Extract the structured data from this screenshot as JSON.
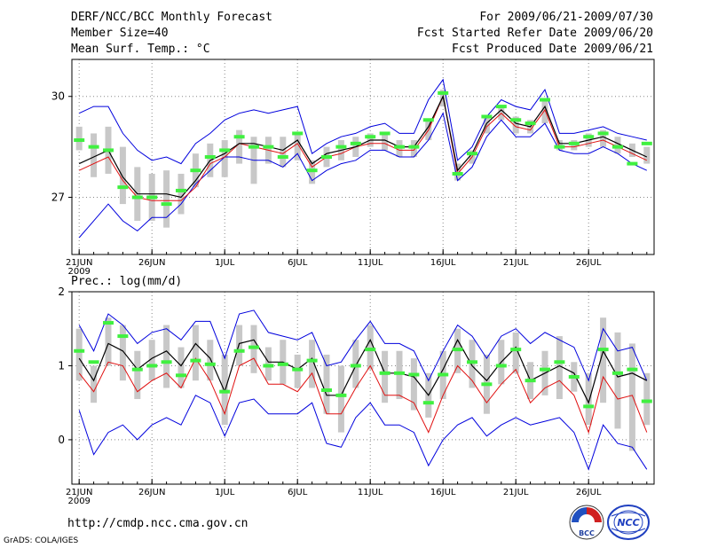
{
  "header": {
    "title": "DERF/NCC/BCC Monthly Forecast",
    "member": "Member Size=40",
    "variable": "Mean Surf. Temp.: °C",
    "period": "For 2009/06/21-2009/07/30",
    "refer": "Fcst Started Refer Date 2009/06/20",
    "produced": "Fcst Produced Date 2009/06/21"
  },
  "footer": {
    "url": "http://cmdp.ncc.cma.gov.cn",
    "grads": "GrADS: COLA/IGES",
    "logo_bcc": "BCC",
    "logo_ncc": "NCC"
  },
  "colors": {
    "mean": "#000000",
    "median": "#e01010",
    "range": "#0000dd",
    "box": "#c8c8c8",
    "obs": "#40f040"
  },
  "chart_data": [
    {
      "type": "line",
      "title": "Mean Surf. Temp.: °C",
      "x_label_year": "2009",
      "tick_labels": [
        {
          "day": 0,
          "label": "21JUN"
        },
        {
          "day": 5,
          "label": "26JUN"
        },
        {
          "day": 10,
          "label": "1JUL"
        },
        {
          "day": 15,
          "label": "6JUL"
        },
        {
          "day": 20,
          "label": "11JUL"
        },
        {
          "day": 25,
          "label": "16JUL"
        },
        {
          "day": 30,
          "label": "21JUL"
        },
        {
          "day": 35,
          "label": "26JUL"
        }
      ],
      "y_ticks": [
        27,
        30
      ],
      "ylim": [
        25.3,
        31.1
      ],
      "xlim": [
        -0.5,
        39.5
      ],
      "mean": [
        28.0,
        28.2,
        28.4,
        27.6,
        27.1,
        27.1,
        27.1,
        27.0,
        27.5,
        28.1,
        28.3,
        28.6,
        28.6,
        28.5,
        28.4,
        28.7,
        28.0,
        28.3,
        28.4,
        28.5,
        28.7,
        28.7,
        28.5,
        28.5,
        29.1,
        30.0,
        27.8,
        28.3,
        29.2,
        29.6,
        29.2,
        29.1,
        29.7,
        28.6,
        28.6,
        28.7,
        28.8,
        28.6,
        28.4,
        28.2
      ],
      "median": [
        27.8,
        28.0,
        28.2,
        27.5,
        27.0,
        26.9,
        26.9,
        26.9,
        27.3,
        28.0,
        28.2,
        28.6,
        28.5,
        28.4,
        28.3,
        28.6,
        27.9,
        28.2,
        28.3,
        28.5,
        28.6,
        28.6,
        28.4,
        28.4,
        29.0,
        30.0,
        27.7,
        28.2,
        29.1,
        29.5,
        29.1,
        29.0,
        29.6,
        28.5,
        28.5,
        28.6,
        28.7,
        28.5,
        28.3,
        28.1
      ],
      "max": [
        29.5,
        29.7,
        29.7,
        28.9,
        28.4,
        28.1,
        28.2,
        28.0,
        28.6,
        28.9,
        29.3,
        29.5,
        29.6,
        29.5,
        29.6,
        29.7,
        28.3,
        28.6,
        28.8,
        28.9,
        29.1,
        29.2,
        28.9,
        28.9,
        29.9,
        30.5,
        28.1,
        28.5,
        29.4,
        29.9,
        29.7,
        29.6,
        30.2,
        28.9,
        28.9,
        29.0,
        29.1,
        28.9,
        28.8,
        28.7
      ],
      "min": [
        25.8,
        26.3,
        26.8,
        26.3,
        26.0,
        26.4,
        26.4,
        26.8,
        27.4,
        27.8,
        28.2,
        28.2,
        28.1,
        28.1,
        27.9,
        28.3,
        27.5,
        27.8,
        28.0,
        28.1,
        28.4,
        28.4,
        28.2,
        28.2,
        28.7,
        29.5,
        27.5,
        27.9,
        28.8,
        29.3,
        28.8,
        28.8,
        29.2,
        28.4,
        28.3,
        28.3,
        28.5,
        28.3,
        28.0,
        27.8
      ],
      "box_high": [
        29.1,
        28.9,
        29.1,
        28.5,
        27.9,
        27.7,
        27.8,
        27.7,
        28.3,
        28.6,
        28.7,
        29.0,
        28.8,
        28.8,
        28.8,
        28.9,
        28.1,
        28.5,
        28.7,
        28.8,
        28.9,
        28.9,
        28.7,
        28.7,
        29.3,
        30.2,
        28.0,
        28.4,
        29.4,
        29.7,
        29.4,
        29.3,
        29.9,
        28.7,
        28.7,
        28.9,
        29.0,
        28.8,
        28.6,
        28.5
      ],
      "box_low": [
        28.4,
        27.6,
        27.7,
        26.8,
        26.3,
        26.3,
        26.1,
        26.5,
        27.3,
        27.6,
        27.6,
        28.0,
        27.4,
        28.0,
        27.9,
        28.1,
        27.4,
        27.9,
        28.1,
        28.2,
        28.5,
        28.4,
        28.2,
        28.2,
        28.7,
        29.7,
        27.5,
        28.0,
        28.9,
        29.3,
        28.9,
        28.9,
        29.2,
        28.4,
        28.4,
        28.5,
        28.5,
        28.3,
        28.2,
        28.0
      ],
      "obs": [
        28.7,
        28.5,
        28.4,
        27.3,
        27.0,
        27.0,
        26.8,
        27.2,
        27.8,
        28.2,
        28.4,
        28.8,
        28.5,
        28.5,
        28.2,
        28.9,
        27.8,
        28.2,
        28.5,
        28.6,
        28.8,
        28.9,
        28.5,
        28.5,
        29.3,
        30.1,
        27.7,
        28.3,
        29.4,
        29.7,
        29.3,
        29.2,
        29.9,
        28.5,
        28.6,
        28.8,
        28.9,
        28.5,
        28.0,
        28.6
      ]
    },
    {
      "type": "line",
      "title": "Prec.: log(mm/d)",
      "x_label_year": "2009",
      "tick_labels": [
        {
          "day": 0,
          "label": "21JUN"
        },
        {
          "day": 5,
          "label": "26JUN"
        },
        {
          "day": 10,
          "label": "1JUL"
        },
        {
          "day": 15,
          "label": "6JUL"
        },
        {
          "day": 20,
          "label": "11JUL"
        },
        {
          "day": 25,
          "label": "16JUL"
        },
        {
          "day": 30,
          "label": "21JUL"
        },
        {
          "day": 35,
          "label": "26JUL"
        }
      ],
      "y_ticks": [
        0,
        1,
        2
      ],
      "ylim": [
        -0.6,
        2.0
      ],
      "xlim": [
        -0.5,
        39.5
      ],
      "mean": [
        1.1,
        0.8,
        1.3,
        1.2,
        0.95,
        1.1,
        1.2,
        1.0,
        1.3,
        1.1,
        0.65,
        1.3,
        1.35,
        1.05,
        1.05,
        0.95,
        1.1,
        0.6,
        0.6,
        1.0,
        1.35,
        0.9,
        0.9,
        0.85,
        0.6,
        0.95,
        1.35,
        1.0,
        0.8,
        1.05,
        1.25,
        0.8,
        0.9,
        1.0,
        0.9,
        0.5,
        1.2,
        0.85,
        0.9,
        0.8
      ],
      "median": [
        0.9,
        0.65,
        1.05,
        1.0,
        0.65,
        0.8,
        0.9,
        0.7,
        1.1,
        0.8,
        0.35,
        1.0,
        1.1,
        0.75,
        0.75,
        0.65,
        0.9,
        0.35,
        0.35,
        0.7,
        1.0,
        0.6,
        0.6,
        0.5,
        0.1,
        0.6,
        1.0,
        0.8,
        0.5,
        0.75,
        0.95,
        0.5,
        0.7,
        0.8,
        0.6,
        0.1,
        0.85,
        0.55,
        0.6,
        0.1
      ],
      "max": [
        1.55,
        1.2,
        1.7,
        1.55,
        1.3,
        1.45,
        1.5,
        1.35,
        1.6,
        1.6,
        1.1,
        1.7,
        1.75,
        1.45,
        1.4,
        1.35,
        1.45,
        1.0,
        1.05,
        1.35,
        1.6,
        1.3,
        1.3,
        1.2,
        0.8,
        1.2,
        1.55,
        1.4,
        1.1,
        1.4,
        1.5,
        1.3,
        1.45,
        1.35,
        1.25,
        0.8,
        1.5,
        1.2,
        1.25,
        0.8
      ],
      "min": [
        0.4,
        -0.2,
        0.1,
        0.2,
        0.0,
        0.2,
        0.3,
        0.2,
        0.6,
        0.5,
        0.05,
        0.5,
        0.55,
        0.35,
        0.35,
        0.35,
        0.5,
        -0.05,
        -0.1,
        0.3,
        0.5,
        0.2,
        0.2,
        0.1,
        -0.35,
        0.0,
        0.2,
        0.3,
        0.05,
        0.2,
        0.3,
        0.2,
        0.25,
        0.3,
        0.1,
        -0.4,
        0.2,
        -0.05,
        -0.1,
        -0.4
      ],
      "box_high": [
        1.5,
        1.0,
        1.65,
        1.55,
        1.2,
        1.35,
        1.55,
        1.25,
        1.55,
        1.35,
        1.15,
        1.55,
        1.55,
        1.25,
        1.35,
        1.15,
        1.35,
        1.15,
        1.0,
        1.35,
        1.55,
        1.2,
        1.2,
        1.1,
        0.9,
        1.2,
        1.5,
        1.35,
        1.15,
        1.35,
        1.45,
        1.05,
        1.2,
        1.4,
        1.05,
        0.9,
        1.65,
        1.45,
        1.3,
        0.9
      ],
      "box_low": [
        0.8,
        0.5,
        1.0,
        0.8,
        0.55,
        0.8,
        0.7,
        0.7,
        0.8,
        0.8,
        0.2,
        1.0,
        0.9,
        0.8,
        0.75,
        0.7,
        0.7,
        0.35,
        0.1,
        0.7,
        0.95,
        0.5,
        0.55,
        0.4,
        0.3,
        0.55,
        0.9,
        0.7,
        0.35,
        0.75,
        0.9,
        0.55,
        0.6,
        0.55,
        0.65,
        0.2,
        0.5,
        0.15,
        -0.15,
        0.2
      ],
      "obs": [
        1.2,
        1.05,
        1.58,
        1.4,
        0.95,
        1.0,
        1.05,
        0.87,
        1.07,
        1.02,
        0.65,
        1.2,
        1.25,
        1.0,
        1.02,
        0.95,
        1.07,
        0.67,
        0.6,
        1.0,
        1.22,
        0.9,
        0.9,
        0.88,
        0.5,
        0.88,
        1.22,
        1.05,
        0.75,
        1.0,
        1.22,
        0.8,
        0.95,
        1.05,
        0.85,
        0.45,
        1.22,
        0.9,
        0.95,
        0.52
      ]
    }
  ]
}
